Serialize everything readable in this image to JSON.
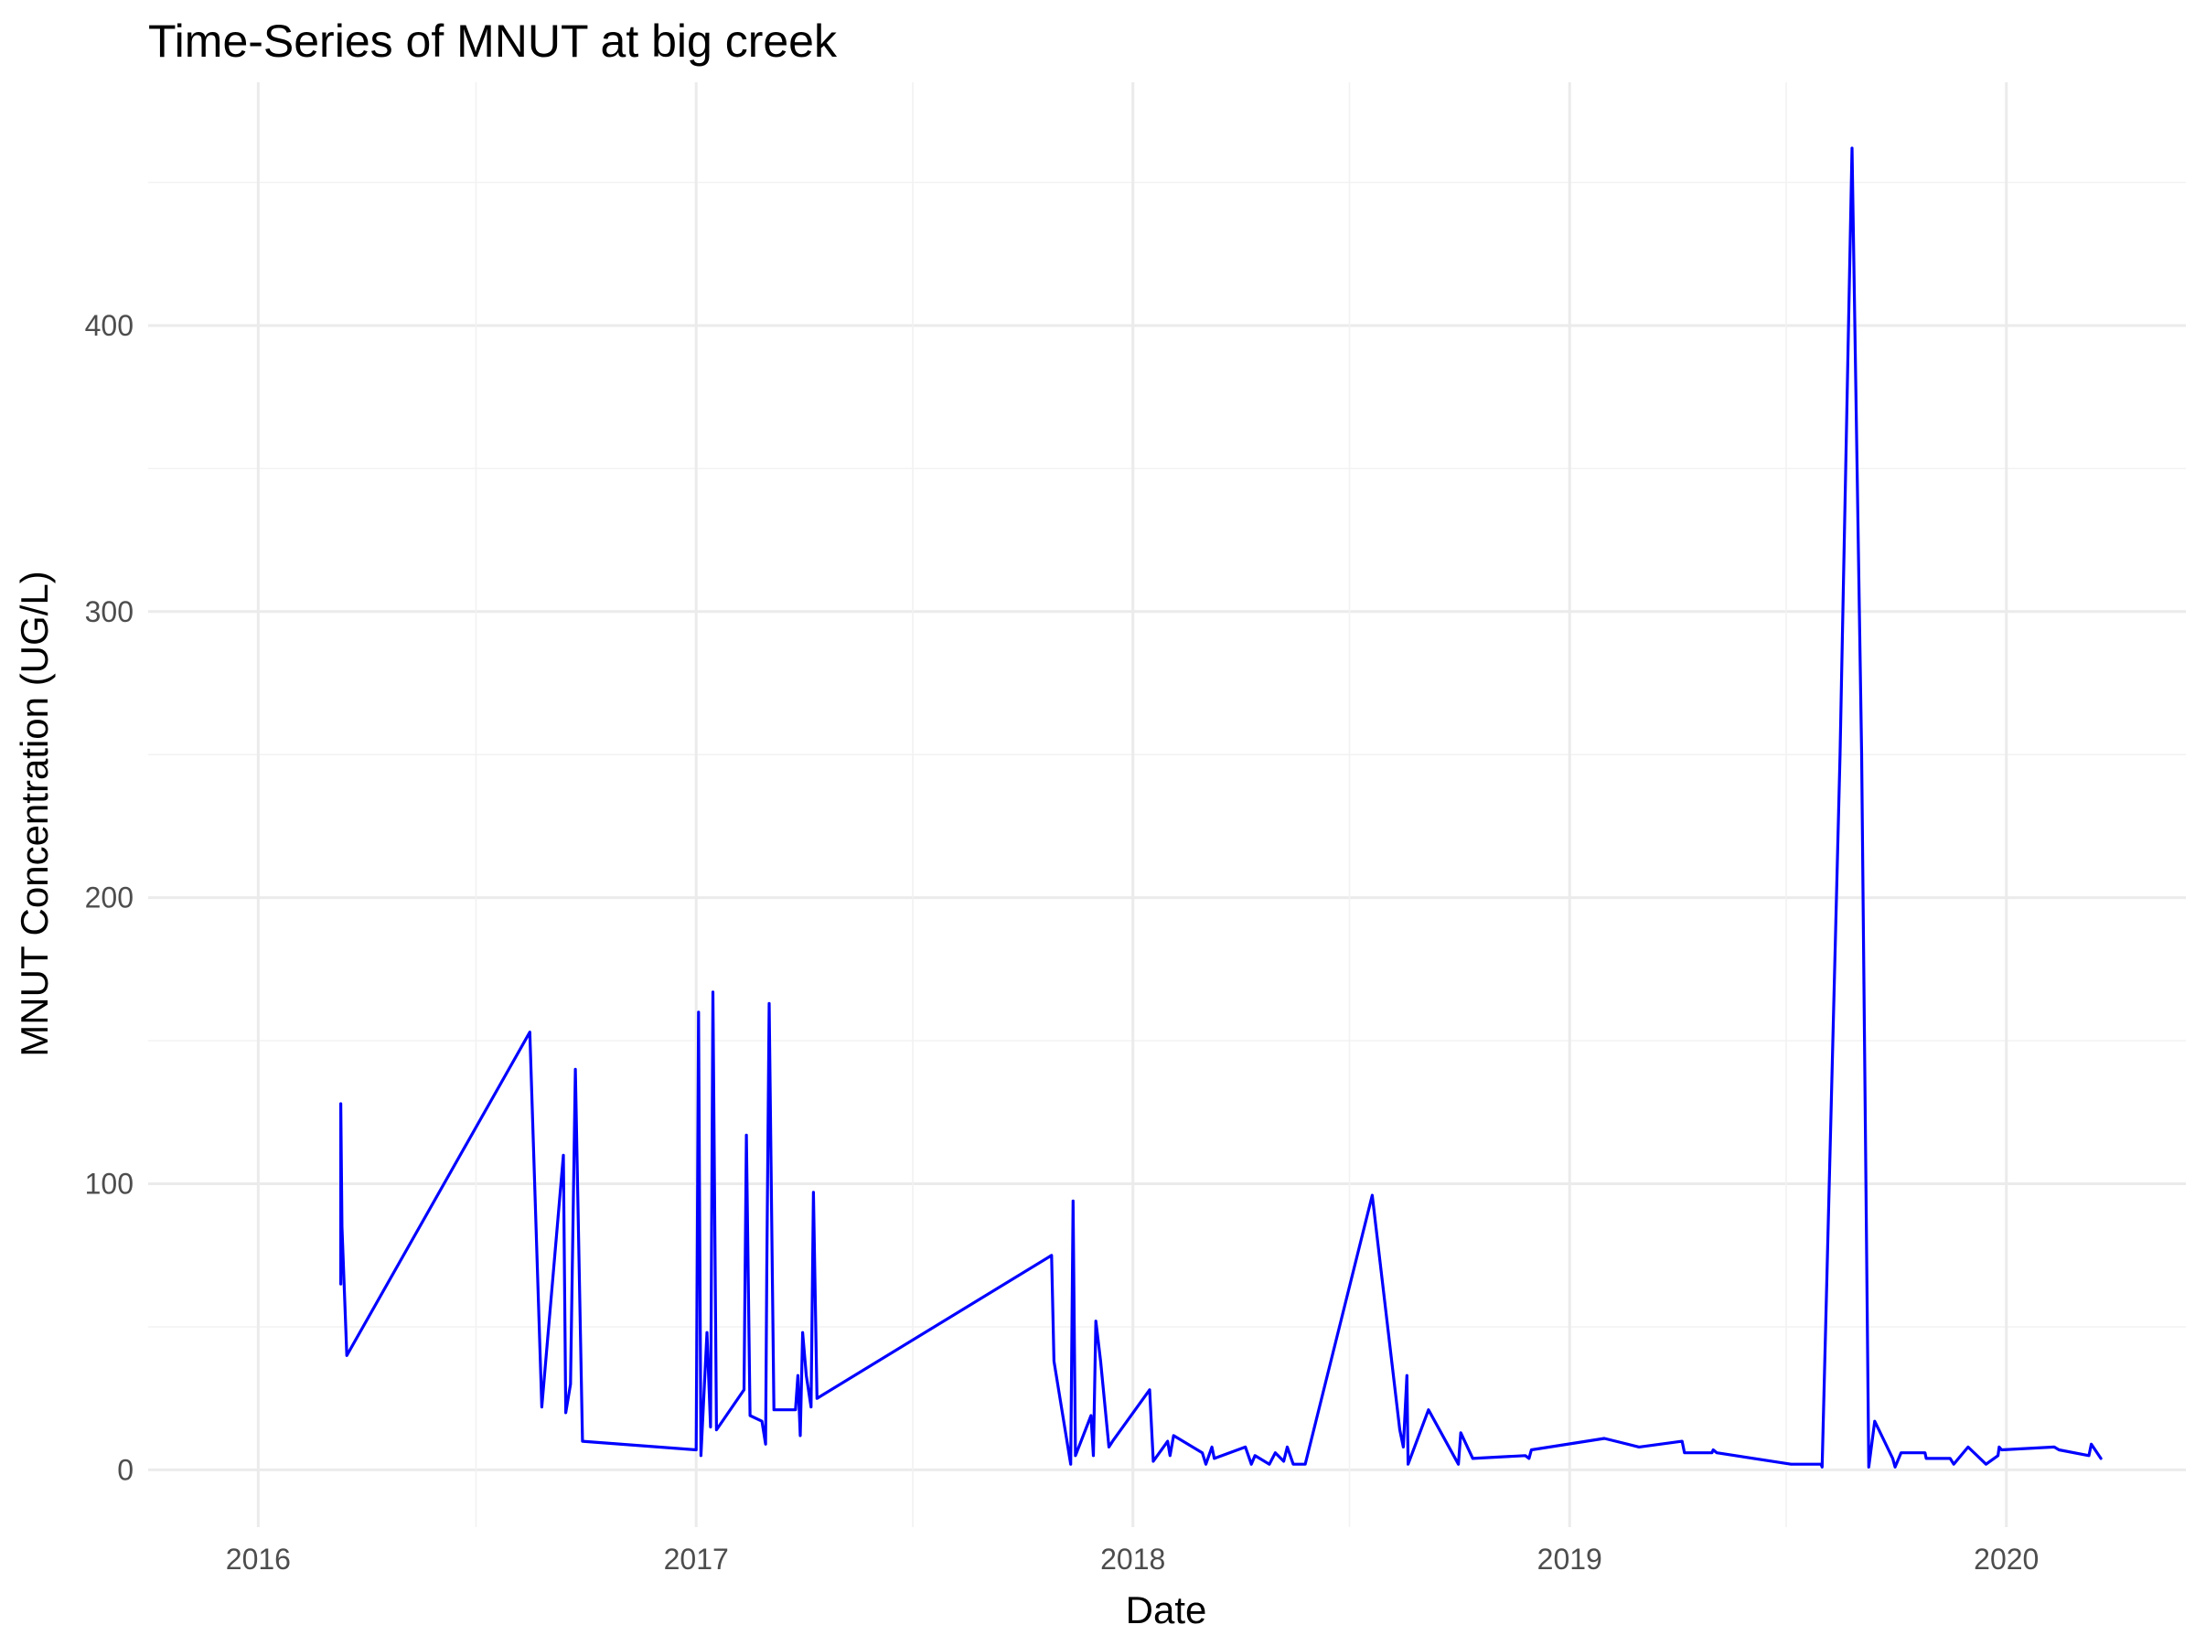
{
  "chart_data": {
    "type": "line",
    "title": "Time-Series of MNUT at big creek",
    "xlabel": "Date",
    "ylabel": "MNUT Concentration (UG/L)",
    "x_ticks": [
      "2016",
      "2017",
      "2018",
      "2019",
      "2020"
    ],
    "y_ticks": [
      0,
      100,
      200,
      300,
      400
    ],
    "xlim": [
      "2015-10-01",
      "2020-05-30"
    ],
    "ylim": [
      -20,
      485
    ],
    "grid": true,
    "legend": "none",
    "line_color": "#0000FF",
    "series": [
      {
        "points": [
          [
            "2016-03-10",
            65
          ],
          [
            "2016-03-10",
            128
          ],
          [
            "2016-03-11",
            85
          ],
          [
            "2016-03-15",
            40
          ],
          [
            "2016-08-15",
            153
          ],
          [
            "2016-08-25",
            22
          ],
          [
            "2016-09-12",
            110
          ],
          [
            "2016-09-14",
            20
          ],
          [
            "2016-09-18",
            30
          ],
          [
            "2016-09-22",
            140
          ],
          [
            "2016-09-28",
            10
          ],
          [
            "2017-01-01",
            7
          ],
          [
            "2017-01-03",
            160
          ],
          [
            "2017-01-05",
            5
          ],
          [
            "2017-01-10",
            48
          ],
          [
            "2017-01-13",
            15
          ],
          [
            "2017-01-15",
            167
          ],
          [
            "2017-01-18",
            14
          ],
          [
            "2017-02-10",
            28
          ],
          [
            "2017-02-12",
            117
          ],
          [
            "2017-02-15",
            19
          ],
          [
            "2017-02-25",
            17
          ],
          [
            "2017-02-28",
            9
          ],
          [
            "2017-03-01",
            70
          ],
          [
            "2017-03-03",
            163
          ],
          [
            "2017-03-07",
            21
          ],
          [
            "2017-03-25",
            21
          ],
          [
            "2017-03-27",
            33
          ],
          [
            "2017-03-29",
            12
          ],
          [
            "2017-03-31",
            48
          ],
          [
            "2017-04-03",
            33
          ],
          [
            "2017-04-07",
            22
          ],
          [
            "2017-04-09",
            97
          ],
          [
            "2017-04-12",
            25
          ],
          [
            "2017-10-25",
            75
          ],
          [
            "2017-10-27",
            38
          ],
          [
            "2017-11-10",
            2
          ],
          [
            "2017-11-12",
            94
          ],
          [
            "2017-11-14",
            5
          ],
          [
            "2017-11-27",
            19
          ],
          [
            "2017-11-29",
            5
          ],
          [
            "2017-12-01",
            52
          ],
          [
            "2017-12-05",
            38
          ],
          [
            "2017-12-12",
            8
          ],
          [
            "2017-12-15",
            10
          ],
          [
            "2018-01-15",
            28
          ],
          [
            "2018-01-18",
            3
          ],
          [
            "2018-01-30",
            10
          ],
          [
            "2018-02-01",
            5
          ],
          [
            "2018-02-04",
            12
          ],
          [
            "2018-02-28",
            6
          ],
          [
            "2018-03-03",
            2
          ],
          [
            "2018-03-08",
            8
          ],
          [
            "2018-03-10",
            4
          ],
          [
            "2018-04-05",
            8
          ],
          [
            "2018-04-10",
            2
          ],
          [
            "2018-04-13",
            5
          ],
          [
            "2018-04-25",
            2
          ],
          [
            "2018-04-30",
            6
          ],
          [
            "2018-05-07",
            3
          ],
          [
            "2018-05-10",
            8
          ],
          [
            "2018-05-15",
            2
          ],
          [
            "2018-05-25",
            2
          ],
          [
            "2018-07-20",
            96
          ],
          [
            "2018-08-12",
            14
          ],
          [
            "2018-08-15",
            8
          ],
          [
            "2018-08-18",
            33
          ],
          [
            "2018-08-19",
            2
          ],
          [
            "2018-09-05",
            21
          ],
          [
            "2018-09-30",
            2
          ],
          [
            "2018-10-02",
            13
          ],
          [
            "2018-10-12",
            4
          ],
          [
            "2018-11-25",
            5
          ],
          [
            "2018-11-28",
            4
          ],
          [
            "2018-11-30",
            7
          ],
          [
            "2019-01-30",
            11
          ],
          [
            "2019-02-28",
            8
          ],
          [
            "2019-04-05",
            10
          ],
          [
            "2019-04-07",
            6
          ],
          [
            "2019-04-30",
            6
          ],
          [
            "2019-05-01",
            7
          ],
          [
            "2019-05-04",
            6
          ],
          [
            "2019-07-05",
            2
          ],
          [
            "2019-07-30",
            2
          ],
          [
            "2019-07-31",
            1
          ],
          [
            "2019-08-15",
            250
          ],
          [
            "2019-08-25",
            462
          ],
          [
            "2019-09-02",
            250
          ],
          [
            "2019-09-08",
            1
          ],
          [
            "2019-09-13",
            17
          ],
          [
            "2019-09-28",
            4
          ],
          [
            "2019-09-30",
            1
          ],
          [
            "2019-10-05",
            6
          ],
          [
            "2019-10-25",
            6
          ],
          [
            "2019-10-26",
            4
          ],
          [
            "2019-11-15",
            4
          ],
          [
            "2019-11-18",
            2
          ],
          [
            "2019-11-30",
            8
          ],
          [
            "2019-12-15",
            2
          ],
          [
            "2019-12-25",
            5
          ],
          [
            "2019-12-26",
            8
          ],
          [
            "2019-12-28",
            7
          ],
          [
            "2020-02-10",
            8
          ],
          [
            "2020-02-14",
            7
          ],
          [
            "2020-03-10",
            5
          ],
          [
            "2020-03-12",
            9
          ],
          [
            "2020-03-20",
            4
          ]
        ]
      }
    ]
  }
}
